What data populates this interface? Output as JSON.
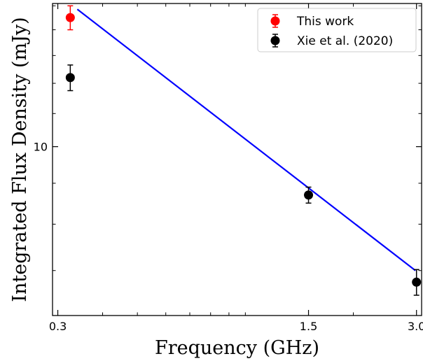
{
  "chart_data": {
    "type": "scatter",
    "xlabel": "Frequency (GHz)",
    "ylabel": "Integrated Flux Density (mJy)",
    "x_scale": "log",
    "y_scale": "log",
    "xlim": [
      0.29,
      3.1
    ],
    "ylim": [
      6.15,
      15.1
    ],
    "x_ticks": [
      {
        "value": 0.3,
        "label": "0.3"
      },
      {
        "value": 1.5,
        "label": "1.5"
      },
      {
        "value": 3.0,
        "label": "3.0"
      }
    ],
    "y_ticks": [
      {
        "value": 10,
        "label": "10"
      }
    ],
    "series": [
      {
        "name": "This work",
        "color": "#ff0000",
        "points": [
          {
            "x": 0.325,
            "y": 14.5,
            "err": 0.5
          }
        ]
      },
      {
        "name": "Xie et al. (2020)",
        "color": "#000000",
        "points": [
          {
            "x": 0.325,
            "y": 12.2,
            "err": 0.45
          },
          {
            "x": 1.5,
            "y": 8.7,
            "err": 0.2
          },
          {
            "x": 3.0,
            "y": 6.77,
            "err": 0.25
          }
        ]
      }
    ],
    "fit_line": {
      "color": "#0000ff",
      "x": [
        0.34,
        2.98
      ],
      "y": [
        14.85,
        7.0
      ]
    },
    "legend": {
      "placement": "top-right"
    }
  }
}
